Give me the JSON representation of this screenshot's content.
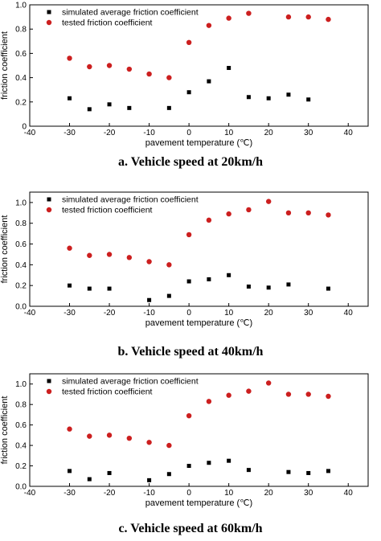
{
  "chart_data": [
    {
      "type": "scatter",
      "caption": "a. Vehicle speed at 20km/h",
      "xlabel": "pavement temperature (℃)",
      "ylabel": "friction coefficient",
      "xlim": [
        -40,
        45
      ],
      "ylim": [
        0,
        1.0
      ],
      "xticks": [
        -40,
        -30,
        -20,
        -10,
        0,
        10,
        20,
        30,
        40
      ],
      "yticks": [
        0,
        0.2,
        0.4,
        0.6,
        0.8,
        1.0
      ],
      "ytick_labels": [
        "0",
        "0.2",
        "0.4",
        "0.6",
        "0.8",
        "1.0"
      ],
      "legend_position": "top-left",
      "series": [
        {
          "name": "simulated average friction coefficient",
          "marker": "square",
          "color": "#000000",
          "x": [
            -30,
            -25,
            -20,
            -15,
            -5,
            0,
            5,
            10,
            15,
            20,
            25,
            30
          ],
          "y": [
            0.23,
            0.14,
            0.18,
            0.15,
            0.15,
            0.28,
            0.37,
            0.48,
            0.24,
            0.23,
            0.26,
            0.22
          ]
        },
        {
          "name": "tested friction coefficient",
          "marker": "circle",
          "color": "#cc1f1f",
          "x": [
            -30,
            -25,
            -20,
            -15,
            -10,
            -5,
            0,
            5,
            10,
            15,
            25,
            30,
            35
          ],
          "y": [
            0.56,
            0.49,
            0.5,
            0.47,
            0.43,
            0.4,
            0.69,
            0.83,
            0.89,
            0.93,
            0.9,
            0.9,
            0.88
          ]
        }
      ]
    },
    {
      "type": "scatter",
      "caption": "b. Vehicle speed at 40km/h",
      "xlabel": "pavement temperature (℃)",
      "ylabel": "friction coefficient",
      "xlim": [
        -40,
        45
      ],
      "ylim": [
        0,
        1.1
      ],
      "xticks": [
        -40,
        -30,
        -20,
        -10,
        0,
        10,
        20,
        30,
        40
      ],
      "yticks": [
        0,
        0.2,
        0.4,
        0.6,
        0.8,
        1.0
      ],
      "ytick_labels": [
        "0.0",
        "0.2",
        "0.4",
        "0.6",
        "0.8",
        "1.0"
      ],
      "legend_position": "top-left",
      "series": [
        {
          "name": "simulated average friction coefficient",
          "marker": "square",
          "color": "#000000",
          "x": [
            -30,
            -25,
            -20,
            -10,
            -5,
            0,
            5,
            10,
            15,
            20,
            25,
            35
          ],
          "y": [
            0.2,
            0.17,
            0.17,
            0.06,
            0.1,
            0.24,
            0.26,
            0.3,
            0.19,
            0.18,
            0.21,
            0.17
          ]
        },
        {
          "name": "tested friction coefficient",
          "marker": "circle",
          "color": "#cc1f1f",
          "x": [
            -30,
            -25,
            -20,
            -15,
            -10,
            -5,
            0,
            5,
            10,
            15,
            20,
            25,
            30,
            35
          ],
          "y": [
            0.56,
            0.49,
            0.5,
            0.47,
            0.43,
            0.4,
            0.69,
            0.83,
            0.89,
            0.93,
            1.01,
            0.9,
            0.9,
            0.88
          ]
        }
      ]
    },
    {
      "type": "scatter",
      "caption": "c. Vehicle speed at 60km/h",
      "xlabel": "pavement temperature (℃)",
      "ylabel": "friction coefficient",
      "xlim": [
        -40,
        45
      ],
      "ylim": [
        0,
        1.1
      ],
      "xticks": [
        -40,
        -30,
        -20,
        -10,
        0,
        10,
        20,
        30,
        40
      ],
      "yticks": [
        0,
        0.2,
        0.4,
        0.6,
        0.8,
        1.0
      ],
      "ytick_labels": [
        "0.0",
        "0.2",
        "0.4",
        "0.6",
        "0.8",
        "1.0"
      ],
      "legend_position": "top-left",
      "series": [
        {
          "name": "simulated average friction coefficient",
          "marker": "square",
          "color": "#000000",
          "x": [
            -30,
            -25,
            -20,
            -10,
            -5,
            0,
            5,
            10,
            15,
            25,
            30,
            35
          ],
          "y": [
            0.15,
            0.07,
            0.13,
            0.06,
            0.12,
            0.2,
            0.23,
            0.25,
            0.16,
            0.14,
            0.13,
            0.15
          ]
        },
        {
          "name": "tested friction coefficient",
          "marker": "circle",
          "color": "#cc1f1f",
          "x": [
            -30,
            -25,
            -20,
            -15,
            -10,
            -5,
            0,
            5,
            10,
            15,
            20,
            25,
            30,
            35
          ],
          "y": [
            0.56,
            0.49,
            0.5,
            0.47,
            0.43,
            0.4,
            0.69,
            0.83,
            0.89,
            0.93,
            1.01,
            0.9,
            0.9,
            0.88
          ]
        }
      ]
    }
  ]
}
